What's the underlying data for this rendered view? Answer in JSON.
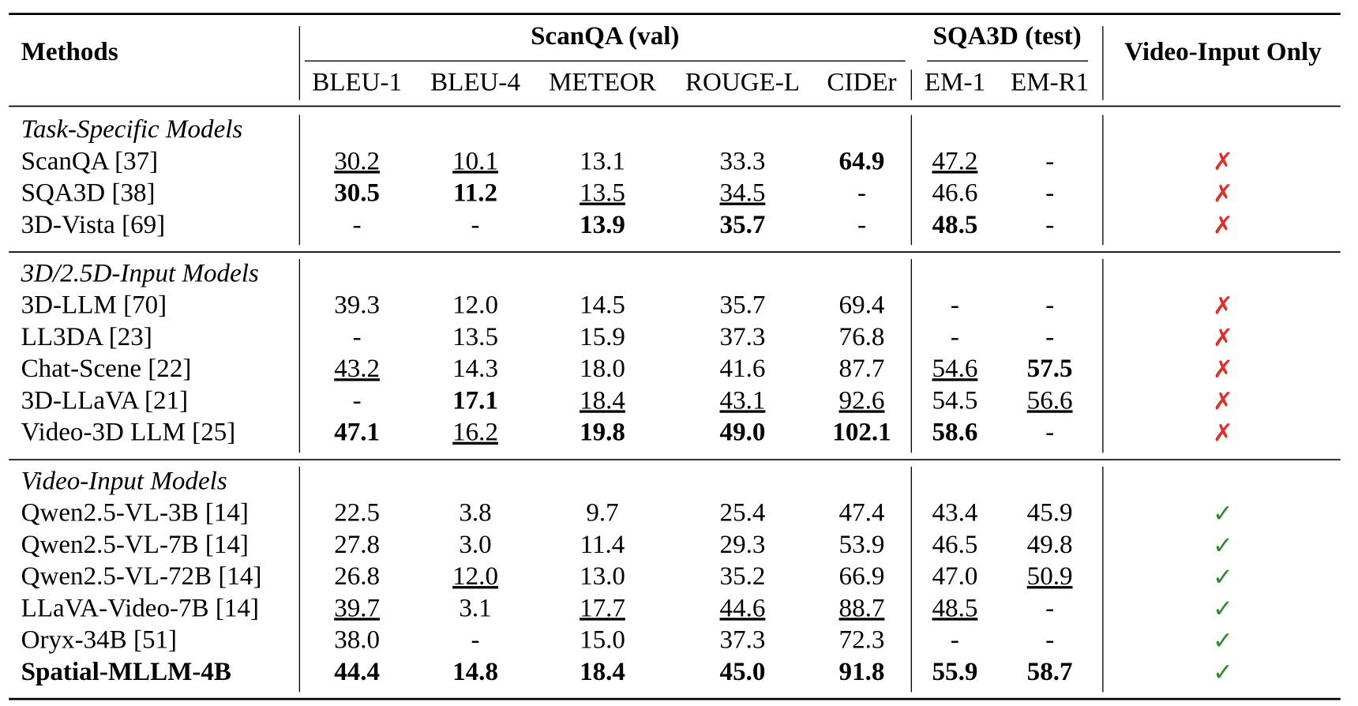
{
  "header": {
    "methods": "Methods",
    "scanqa": "ScanQA (val)",
    "sqa3d": "SQA3D (test)",
    "video_only": "Video-Input Only",
    "columns": [
      "BLEU-1",
      "BLEU-4",
      "METEOR",
      "ROUGE-L",
      "CIDEr",
      "EM-1",
      "EM-R1"
    ]
  },
  "groups": [
    {
      "title": "Task-Specific Models",
      "mark_color": "#e0302a",
      "rows": [
        {
          "method": "ScanQA [37]",
          "values": [
            "30.2",
            "10.1",
            "13.1",
            "33.3",
            "64.9",
            "47.2",
            "-"
          ],
          "styles": [
            "u",
            "u",
            "n",
            "n",
            "b",
            "u",
            "n"
          ],
          "video_only": "✗"
        },
        {
          "method": "SQA3D [38]",
          "values": [
            "30.5",
            "11.2",
            "13.5",
            "34.5",
            "-",
            "46.6",
            "-"
          ],
          "styles": [
            "b",
            "b",
            "u",
            "u",
            "n",
            "n",
            "n"
          ],
          "video_only": "✗"
        },
        {
          "method": "3D-Vista [69]",
          "values": [
            "-",
            "-",
            "13.9",
            "35.7",
            "-",
            "48.5",
            "-"
          ],
          "styles": [
            "n",
            "n",
            "b",
            "b",
            "n",
            "b",
            "n"
          ],
          "video_only": "✗"
        }
      ]
    },
    {
      "title": "3D/2.5D-Input Models",
      "mark_color": "#e0302a",
      "rows": [
        {
          "method": "3D-LLM [70]",
          "values": [
            "39.3",
            "12.0",
            "14.5",
            "35.7",
            "69.4",
            "-",
            "-"
          ],
          "styles": [
            "n",
            "n",
            "n",
            "n",
            "n",
            "n",
            "n"
          ],
          "video_only": "✗"
        },
        {
          "method": "LL3DA [23]",
          "values": [
            "-",
            "13.5",
            "15.9",
            "37.3",
            "76.8",
            "-",
            "-"
          ],
          "styles": [
            "n",
            "n",
            "n",
            "n",
            "n",
            "n",
            "n"
          ],
          "video_only": "✗"
        },
        {
          "method": "Chat-Scene [22]",
          "values": [
            "43.2",
            "14.3",
            "18.0",
            "41.6",
            "87.7",
            "54.6",
            "57.5"
          ],
          "styles": [
            "u",
            "n",
            "n",
            "n",
            "n",
            "u",
            "b"
          ],
          "video_only": "✗"
        },
        {
          "method": "3D-LLaVA [21]",
          "values": [
            "-",
            "17.1",
            "18.4",
            "43.1",
            "92.6",
            "54.5",
            "56.6"
          ],
          "styles": [
            "n",
            "b",
            "u",
            "u",
            "u",
            "n",
            "u"
          ],
          "video_only": "✗"
        },
        {
          "method": "Video-3D LLM [25]",
          "values": [
            "47.1",
            "16.2",
            "19.8",
            "49.0",
            "102.1",
            "58.6",
            "-"
          ],
          "styles": [
            "b",
            "u",
            "b",
            "b",
            "b",
            "b",
            "n"
          ],
          "video_only": "✗"
        }
      ]
    },
    {
      "title": "Video-Input Models",
      "mark_color": "#2e8b2e",
      "rows": [
        {
          "method": "Qwen2.5-VL-3B [14]",
          "values": [
            "22.5",
            "3.8",
            "9.7",
            "25.4",
            "47.4",
            "43.4",
            "45.9"
          ],
          "styles": [
            "n",
            "n",
            "n",
            "n",
            "n",
            "n",
            "n"
          ],
          "video_only": "✓"
        },
        {
          "method": "Qwen2.5-VL-7B [14]",
          "values": [
            "27.8",
            "3.0",
            "11.4",
            "29.3",
            "53.9",
            "46.5",
            "49.8"
          ],
          "styles": [
            "n",
            "n",
            "n",
            "n",
            "n",
            "n",
            "n"
          ],
          "video_only": "✓"
        },
        {
          "method": "Qwen2.5-VL-72B [14]",
          "values": [
            "26.8",
            "12.0",
            "13.0",
            "35.2",
            "66.9",
            "47.0",
            "50.9"
          ],
          "styles": [
            "n",
            "u",
            "n",
            "n",
            "n",
            "n",
            "u"
          ],
          "video_only": "✓"
        },
        {
          "method": "LLaVA-Video-7B [14]",
          "values": [
            "39.7",
            "3.1",
            "17.7",
            "44.6",
            "88.7",
            "48.5",
            "-"
          ],
          "styles": [
            "u",
            "n",
            "u",
            "u",
            "u",
            "u",
            "n"
          ],
          "video_only": "✓"
        },
        {
          "method": "Oryx-34B [51]",
          "values": [
            "38.0",
            "-",
            "15.0",
            "37.3",
            "72.3",
            "-",
            "-"
          ],
          "styles": [
            "n",
            "n",
            "n",
            "n",
            "n",
            "n",
            "n"
          ],
          "video_only": "✓"
        },
        {
          "method": "Spatial-MLLM-4B",
          "method_style": "b",
          "values": [
            "44.4",
            "14.8",
            "18.4",
            "45.0",
            "91.8",
            "55.9",
            "58.7"
          ],
          "styles": [
            "b",
            "b",
            "b",
            "b",
            "b",
            "b",
            "b"
          ],
          "video_only": "✓"
        }
      ]
    }
  ]
}
